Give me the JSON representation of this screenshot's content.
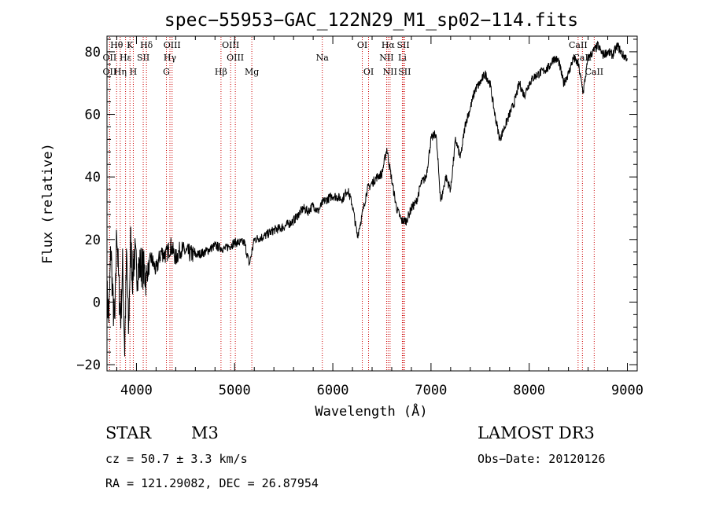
{
  "chart_data": {
    "type": "line",
    "title": "spec−55953−GAC_122N29_M1_sp02−114.fits",
    "xlabel": "Wavelength (Å)",
    "ylabel": "Flux (relative)",
    "xlim": [
      3700,
      9100
    ],
    "ylim": [
      -22,
      85
    ],
    "xticks": [
      4000,
      5000,
      6000,
      7000,
      8000,
      9000
    ],
    "yticks": [
      -20,
      0,
      20,
      40,
      60,
      80
    ],
    "series": [
      {
        "name": "spectrum",
        "color": "#000000",
        "x": [
          3700,
          3720,
          3740,
          3760,
          3780,
          3800,
          3820,
          3840,
          3860,
          3880,
          3900,
          3920,
          3940,
          3960,
          3980,
          4000,
          4050,
          4100,
          4150,
          4200,
          4250,
          4300,
          4350,
          4400,
          4450,
          4500,
          4600,
          4700,
          4800,
          4900,
          5000,
          5100,
          5150,
          5200,
          5300,
          5400,
          5500,
          5600,
          5650,
          5700,
          5750,
          5800,
          5850,
          5900,
          6000,
          6100,
          6150,
          6200,
          6250,
          6300,
          6350,
          6400,
          6450,
          6500,
          6550,
          6570,
          6600,
          6650,
          6700,
          6750,
          6800,
          6850,
          6900,
          6950,
          7000,
          7050,
          7100,
          7150,
          7200,
          7250,
          7300,
          7350,
          7400,
          7450,
          7500,
          7550,
          7600,
          7650,
          7700,
          7750,
          7800,
          7850,
          7900,
          7950,
          8000,
          8050,
          8100,
          8150,
          8200,
          8250,
          8300,
          8350,
          8400,
          8450,
          8500,
          8550,
          8600,
          8650,
          8700,
          8750,
          8800,
          8850,
          8900,
          8950,
          9000
        ],
        "y": [
          2,
          -5,
          18,
          0,
          -8,
          25,
          5,
          -5,
          12,
          -15,
          15,
          -10,
          20,
          8,
          16,
          10,
          12,
          8,
          14,
          10,
          16,
          15,
          18,
          14,
          17,
          16,
          15,
          16,
          18,
          17,
          19,
          19,
          12,
          20,
          21,
          23,
          24,
          26,
          28,
          30,
          29,
          31,
          29,
          32,
          34,
          33,
          36,
          31,
          21,
          28,
          36,
          38,
          40,
          41,
          49,
          45,
          39,
          30,
          26,
          26,
          30,
          32,
          38,
          40,
          52,
          54,
          32,
          40,
          36,
          52,
          46,
          57,
          62,
          68,
          70,
          73,
          70,
          60,
          52,
          56,
          60,
          64,
          70,
          66,
          70,
          72,
          73,
          74,
          75,
          78,
          77,
          70,
          73,
          78,
          76,
          67,
          78,
          80,
          82,
          79,
          80,
          79,
          82,
          79,
          78
        ]
      }
    ],
    "spectral_lines": [
      {
        "label": "Hθ",
        "wavelength": 3798,
        "row": 1
      },
      {
        "label": "OII",
        "wavelength": 3727,
        "row": 2
      },
      {
        "label": "OII",
        "wavelength": 3727,
        "row": 3
      },
      {
        "label": "Hε",
        "wavelength": 3889,
        "row": 2
      },
      {
        "label": "Hη",
        "wavelength": 3835,
        "row": 3
      },
      {
        "label": "K",
        "wavelength": 3934,
        "row": 1
      },
      {
        "label": "H",
        "wavelength": 3968,
        "row": 3
      },
      {
        "label": "SII",
        "wavelength": 4069,
        "row": 2
      },
      {
        "label": "Hδ",
        "wavelength": 4102,
        "row": 1
      },
      {
        "label": "OIII",
        "wavelength": 4363,
        "row": 1
      },
      {
        "label": "Hγ",
        "wavelength": 4341,
        "row": 2
      },
      {
        "label": "G",
        "wavelength": 4305,
        "row": 3
      },
      {
        "label": "OIII",
        "wavelength": 4959,
        "row": 1
      },
      {
        "label": "OIII",
        "wavelength": 5007,
        "row": 2
      },
      {
        "label": "Hβ",
        "wavelength": 4861,
        "row": 3
      },
      {
        "label": "Mg",
        "wavelength": 5175,
        "row": 3
      },
      {
        "label": "Na",
        "wavelength": 5893,
        "row": 2
      },
      {
        "label": "OI",
        "wavelength": 6300,
        "row": 1
      },
      {
        "label": "OI",
        "wavelength": 6364,
        "row": 3
      },
      {
        "label": "Hα",
        "wavelength": 6563,
        "row": 1
      },
      {
        "label": "NII",
        "wavelength": 6548,
        "row": 2
      },
      {
        "label": "NII",
        "wavelength": 6583,
        "row": 3
      },
      {
        "label": "SII",
        "wavelength": 6717,
        "row": 1
      },
      {
        "label": "Li",
        "wavelength": 6708,
        "row": 2
      },
      {
        "label": "SII",
        "wavelength": 6731,
        "row": 3
      },
      {
        "label": "CaII",
        "wavelength": 8498,
        "row": 1
      },
      {
        "label": "CaII",
        "wavelength": 8542,
        "row": 2
      },
      {
        "label": "CaII",
        "wavelength": 8662,
        "row": 3
      }
    ],
    "line_marker_color": "#cc0000"
  },
  "info": {
    "object_class": "STAR",
    "subclass": "M3",
    "survey": "LAMOST DR3",
    "redshift_text": "cz = 50.7 ± 3.3 km/s",
    "obs_date_text": "Obs−Date: 20120126",
    "coords_text": "RA = 121.29082, DEC =  26.87954"
  }
}
